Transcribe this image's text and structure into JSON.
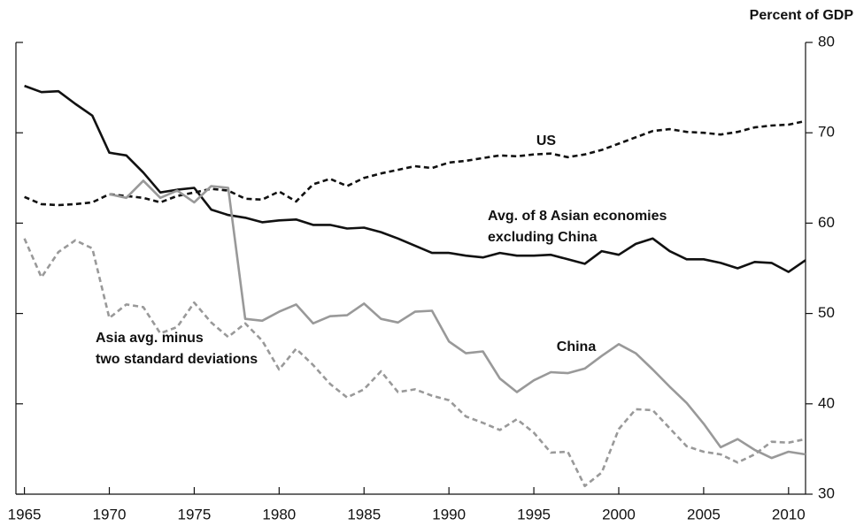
{
  "chart_data": {
    "type": "line",
    "y_label": "Percent of GDP",
    "x": [
      1965,
      1966,
      1967,
      1968,
      1969,
      1970,
      1971,
      1972,
      1973,
      1974,
      1975,
      1976,
      1977,
      1978,
      1979,
      1980,
      1981,
      1982,
      1983,
      1984,
      1985,
      1986,
      1987,
      1988,
      1989,
      1990,
      1991,
      1992,
      1993,
      1994,
      1995,
      1996,
      1997,
      1998,
      1999,
      2000,
      2001,
      2002,
      2003,
      2004,
      2005,
      2006,
      2007,
      2008,
      2009,
      2010,
      2011
    ],
    "xlim": [
      1964.5,
      2011
    ],
    "xticks": [
      1965,
      1970,
      1975,
      1980,
      1985,
      1990,
      1995,
      2000,
      2005,
      2010
    ],
    "ylim": [
      30,
      80
    ],
    "yticks": [
      30,
      40,
      50,
      60,
      70,
      80
    ],
    "series": [
      {
        "name": "Avg. of 8 Asian economies excluding China",
        "color": "#111111",
        "dashed": false,
        "values": [
          75.2,
          74.5,
          74.6,
          73.2,
          71.9,
          67.8,
          67.5,
          65.6,
          63.4,
          63.7,
          63.9,
          61.5,
          60.9,
          60.6,
          60.1,
          60.3,
          60.4,
          59.8,
          59.8,
          59.4,
          59.5,
          59.0,
          58.3,
          57.5,
          56.7,
          56.7,
          56.4,
          56.2,
          56.7,
          56.4,
          56.4,
          56.5,
          56.0,
          55.5,
          56.9,
          56.5,
          57.7,
          58.3,
          56.9,
          56.0,
          56.0,
          55.6,
          55.0,
          55.7,
          55.6,
          54.6,
          55.9
        ]
      },
      {
        "name": "US",
        "color": "#111111",
        "dashed": true,
        "values": [
          62.9,
          62.1,
          62.0,
          62.1,
          62.3,
          63.2,
          63.0,
          62.8,
          62.3,
          63.0,
          63.4,
          63.8,
          63.6,
          62.7,
          62.6,
          63.5,
          62.4,
          64.3,
          64.9,
          64.1,
          65.0,
          65.5,
          65.9,
          66.3,
          66.1,
          66.7,
          66.9,
          67.2,
          67.5,
          67.4,
          67.6,
          67.7,
          67.3,
          67.6,
          68.1,
          68.8,
          69.5,
          70.2,
          70.4,
          70.1,
          70.0,
          69.8,
          70.1,
          70.6,
          70.8,
          70.9,
          71.3
        ]
      },
      {
        "name": "China",
        "color": "#999999",
        "dashed": false,
        "values": [
          null,
          null,
          null,
          null,
          null,
          63.2,
          62.8,
          64.7,
          62.8,
          63.6,
          62.3,
          64.1,
          63.9,
          49.4,
          49.2,
          50.2,
          51.0,
          48.9,
          49.7,
          49.8,
          51.1,
          49.4,
          49.0,
          50.2,
          50.3,
          46.9,
          45.6,
          45.8,
          42.8,
          41.3,
          42.6,
          43.5,
          43.4,
          43.9,
          45.3,
          46.6,
          45.6,
          43.8,
          41.9,
          40.1,
          37.8,
          35.2,
          36.1,
          34.9,
          34.0,
          34.7,
          34.4
        ]
      },
      {
        "name": "Asia avg. minus two standard deviations",
        "color": "#999999",
        "dashed": true,
        "values": [
          58.3,
          54.0,
          56.8,
          58.1,
          57.2,
          49.5,
          51.0,
          50.7,
          47.8,
          48.5,
          51.2,
          49.0,
          47.4,
          48.9,
          47.0,
          43.8,
          46.1,
          44.3,
          42.2,
          40.7,
          41.6,
          43.6,
          41.3,
          41.6,
          40.9,
          40.4,
          38.6,
          37.9,
          37.1,
          38.3,
          36.8,
          34.6,
          34.7,
          30.9,
          32.4,
          37.2,
          39.4,
          39.3,
          37.3,
          35.3,
          34.7,
          34.4,
          33.5,
          34.4,
          35.8,
          35.7,
          36.1
        ]
      }
    ],
    "annotations": [
      {
        "lines": [
          "US"
        ]
      },
      {
        "lines": [
          "Avg. of 8 Asian economies",
          "excluding China"
        ]
      },
      {
        "lines": [
          "China"
        ]
      },
      {
        "lines": [
          "Asia avg. minus",
          "two standard deviations"
        ]
      }
    ]
  }
}
